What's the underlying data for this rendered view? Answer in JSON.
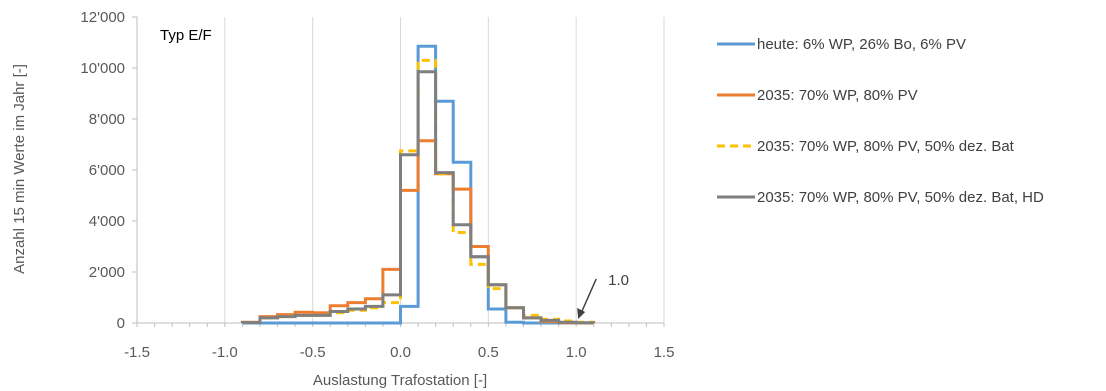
{
  "chart_data": {
    "type": "line",
    "step": true,
    "inner_label": "Typ E/F",
    "xlabel": "Auslastung Trafostation   [-]",
    "ylabel": "Anzahl 15 min Werte im Jahr  [-]",
    "xlim": [
      -1.5,
      1.5
    ],
    "ylim": [
      0,
      12000
    ],
    "x_ticks": [
      -1.5,
      -1.0,
      -0.5,
      0.0,
      0.5,
      1.0,
      1.5
    ],
    "x_tick_labels": [
      "-1.5",
      "-1.0",
      "-0.5",
      "0.0",
      "0.5",
      "1.0",
      "1.5"
    ],
    "y_ticks": [
      0,
      2000,
      4000,
      6000,
      8000,
      10000,
      12000
    ],
    "y_tick_labels": [
      "0",
      "2'000",
      "4'000",
      "6'000",
      "8'000",
      "10'000",
      "12'000"
    ],
    "grid": "vertical",
    "legend_position": "right",
    "bin_edges": [
      -0.9,
      -0.8,
      -0.7,
      -0.6,
      -0.5,
      -0.4,
      -0.3,
      -0.2,
      -0.1,
      0.0,
      0.1,
      0.2,
      0.3,
      0.4,
      0.5,
      0.6,
      0.7,
      0.8,
      0.9,
      1.0,
      1.1
    ],
    "series": [
      {
        "name": "heute: 6% WP, 26% Bo, 6% PV",
        "color": "#5B9BD5",
        "dash": "solid",
        "values": [
          0,
          0,
          0,
          0,
          0,
          0,
          0,
          0,
          0,
          650,
          10850,
          8700,
          6300,
          2600,
          550,
          30,
          0,
          0,
          0,
          0
        ]
      },
      {
        "name": "2035: 70% WP, 80% PV",
        "color": "#ED7D31",
        "dash": "solid",
        "values": [
          30,
          250,
          330,
          420,
          400,
          680,
          800,
          950,
          2100,
          5200,
          7150,
          5850,
          5250,
          3000,
          1500,
          600,
          200,
          60,
          10,
          0
        ]
      },
      {
        "name": "2035: 70% WP, 80% PV, 50% dez. Bat",
        "color": "#FFC000",
        "dash": "dashed",
        "values": [
          20,
          200,
          260,
          300,
          300,
          400,
          500,
          600,
          800,
          6750,
          10300,
          5850,
          3550,
          2300,
          1350,
          600,
          300,
          150,
          80,
          30
        ]
      },
      {
        "name": "2035: 70% WP, 80% PV, 50% dez. Bat, HD",
        "color": "#7F7F7F",
        "dash": "solid",
        "values": [
          20,
          200,
          250,
          300,
          300,
          450,
          550,
          650,
          1100,
          6600,
          9850,
          5900,
          3850,
          2600,
          1500,
          600,
          200,
          100,
          30,
          10
        ]
      }
    ],
    "annotations": [
      {
        "text": "1.0",
        "x": 1.0,
        "y": 0
      }
    ]
  }
}
